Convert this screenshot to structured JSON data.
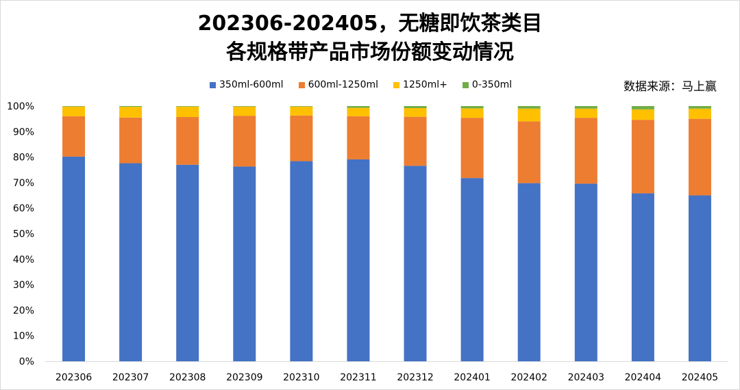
{
  "title_line1": "202306-202405，无糖即饮茶类目",
  "title_line2": "各规格带产品市场份额变动情况",
  "source": "数据来源：马上赢",
  "chart_data": {
    "type": "bar",
    "stacked": true,
    "categories": [
      "202306",
      "202307",
      "202308",
      "202309",
      "202310",
      "202311",
      "202312",
      "202401",
      "202402",
      "202403",
      "202404",
      "202405"
    ],
    "series": [
      {
        "name": "350ml-600ml",
        "color": "#4472C4",
        "values": [
          80.2,
          77.6,
          77.0,
          76.3,
          78.4,
          79.1,
          76.6,
          71.8,
          69.8,
          69.6,
          65.8,
          65.0
        ]
      },
      {
        "name": "600ml-1250ml",
        "color": "#ED7D31",
        "values": [
          15.8,
          17.9,
          18.7,
          19.9,
          17.9,
          16.9,
          19.2,
          23.6,
          24.2,
          25.8,
          28.8,
          30.0
        ]
      },
      {
        "name": "1250ml+",
        "color": "#FFC000",
        "values": [
          3.8,
          4.2,
          4.1,
          3.6,
          3.5,
          3.3,
          3.4,
          3.7,
          5.0,
          3.6,
          4.1,
          4.0
        ]
      },
      {
        "name": "0-350ml",
        "color": "#70AD47",
        "values": [
          0.2,
          0.3,
          0.2,
          0.2,
          0.2,
          0.7,
          0.8,
          0.9,
          1.0,
          1.0,
          1.3,
          1.0
        ]
      }
    ],
    "yticks": [
      "0%",
      "10%",
      "20%",
      "30%",
      "40%",
      "50%",
      "60%",
      "70%",
      "80%",
      "90%",
      "100%"
    ],
    "ylim": [
      0,
      100
    ],
    "grid": false,
    "legend_position": "top"
  }
}
